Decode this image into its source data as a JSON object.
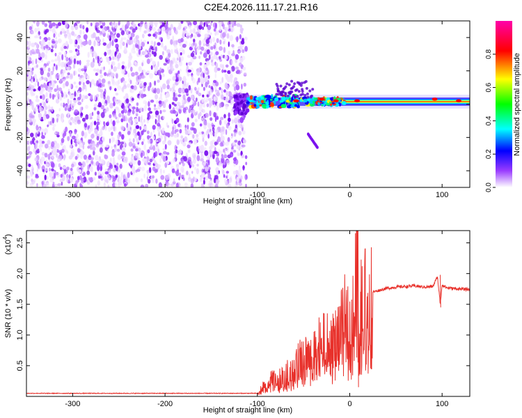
{
  "title": "C2E4.2026.111.17.21.R16",
  "chart_data": [
    {
      "type": "heatmap",
      "xlabel": "Height of straight line (km)",
      "ylabel": "Frequency (Hz)",
      "xlim": [
        -350,
        130
      ],
      "ylim": [
        -50,
        50
      ],
      "xticks": [
        -300,
        -200,
        -100,
        0,
        100
      ],
      "yticks": [
        -40,
        -20,
        0,
        20,
        40
      ],
      "colorbar": {
        "label": "Normalized spectral amplitude",
        "range": [
          0,
          1
        ],
        "ticks": [
          "0.0",
          "0.2",
          "0.4",
          "0.6",
          "0.8"
        ],
        "colors": [
          "#ffffff",
          "#9a3cff",
          "#0000ff",
          "#00ffff",
          "#00ff00",
          "#ffff00",
          "#ff0000",
          "#ff00aa"
        ]
      },
      "regions": [
        {
          "x_range": [
            -350,
            -112
          ],
          "freq_range": [
            -50,
            50
          ],
          "amplitude": 0.1
        },
        {
          "x_range": [
            -112,
            130
          ],
          "freq": 1.5,
          "amplitude": 0.95
        },
        {
          "x_range": [
            -45,
            -35
          ],
          "freq_range": [
            -26,
            -18
          ],
          "amplitude": 0.1
        }
      ]
    },
    {
      "type": "line",
      "xlabel": "Height of straight line (km)",
      "ylabel": "SNR (10 * v/v)",
      "yscale_label": "(x10",
      "yscale_exp": "4",
      "xlim": [
        -350,
        130
      ],
      "ylim": [
        0,
        27000
      ],
      "xticks": [
        -300,
        -200,
        -100,
        0,
        100
      ],
      "yticks": [
        "0.5",
        "1.0",
        "1.5",
        "2.0",
        "2.5"
      ],
      "series": [
        {
          "color": "#e8302a",
          "x": [
            -350,
            -100,
            -95,
            -90,
            -85,
            -80,
            -75,
            -70,
            -65,
            -60,
            -55,
            -50,
            -45,
            -40,
            -35,
            -30,
            -25,
            -20,
            -15,
            -10,
            -5,
            0,
            5,
            8,
            10,
            12,
            15,
            20,
            25,
            30,
            40,
            50,
            60,
            70,
            80,
            90,
            95,
            98,
            100,
            105,
            110,
            120,
            130
          ],
          "y": [
            500,
            500,
            1500,
            1800,
            3000,
            2500,
            3000,
            3200,
            4500,
            4000,
            6000,
            7000,
            7000,
            6500,
            8000,
            10000,
            9000,
            8000,
            10000,
            11000,
            13000,
            12000,
            14000,
            25000,
            3000,
            14500,
            16000,
            16500,
            17000,
            17200,
            17600,
            17800,
            17900,
            18000,
            17800,
            17900,
            19500,
            15000,
            18200,
            17700,
            17600,
            17500,
            17400
          ]
        }
      ]
    }
  ]
}
